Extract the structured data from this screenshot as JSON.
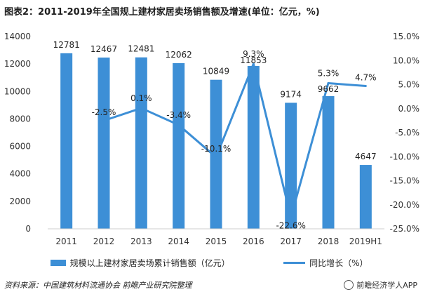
{
  "title": "图表2：2011-2019年全国规上建材家居卖场销售额及增速(单位：亿元，%)",
  "source": "资料来源：中国建筑材料流通协会 前瞻产业研究院整理",
  "brand": "前瞻经济学人APP",
  "colors": {
    "bar": "#3d8fd6",
    "line": "#3d8fd6",
    "axis_text": "#333333",
    "label": "#222222"
  },
  "chart_data": {
    "type": "bar",
    "categories": [
      "2011",
      "2012",
      "2013",
      "2014",
      "2015",
      "2016",
      "2017",
      "2018",
      "2019H1"
    ],
    "series": [
      {
        "name": "规模以上建材家居卖场累计销售额（亿元）",
        "type": "bar",
        "axis": "left",
        "values": [
          12781,
          12467,
          12481,
          12062,
          10849,
          11853,
          9174,
          9662,
          4647
        ]
      },
      {
        "name": "同比增长（%）",
        "type": "line",
        "axis": "right",
        "values": [
          null,
          -2.5,
          0.1,
          -3.4,
          -10.1,
          9.3,
          -22.6,
          5.3,
          4.7
        ]
      }
    ],
    "bar_labels": [
      "12781",
      "12467",
      "12481",
      "12062",
      "10849",
      "11853",
      "9174",
      "9662",
      "4647"
    ],
    "line_labels": [
      "",
      "-2.5%",
      "0.1%",
      "-3.4%",
      "-10.1%",
      "9.3%",
      "-22.6%",
      "5.3%",
      "4.7%"
    ],
    "ylim_left": [
      0,
      14000
    ],
    "yticks_left": [
      "0",
      "2000",
      "4000",
      "6000",
      "8000",
      "10000",
      "12000",
      "14000"
    ],
    "ylim_right": [
      -25,
      15
    ],
    "yticks_right": [
      "-25.0%",
      "-20.0%",
      "-15.0%",
      "-10.0%",
      "-5.0%",
      "0.0%",
      "5.0%",
      "10.0%",
      "15.0%"
    ],
    "grid": false,
    "legend_position": "bottom"
  }
}
